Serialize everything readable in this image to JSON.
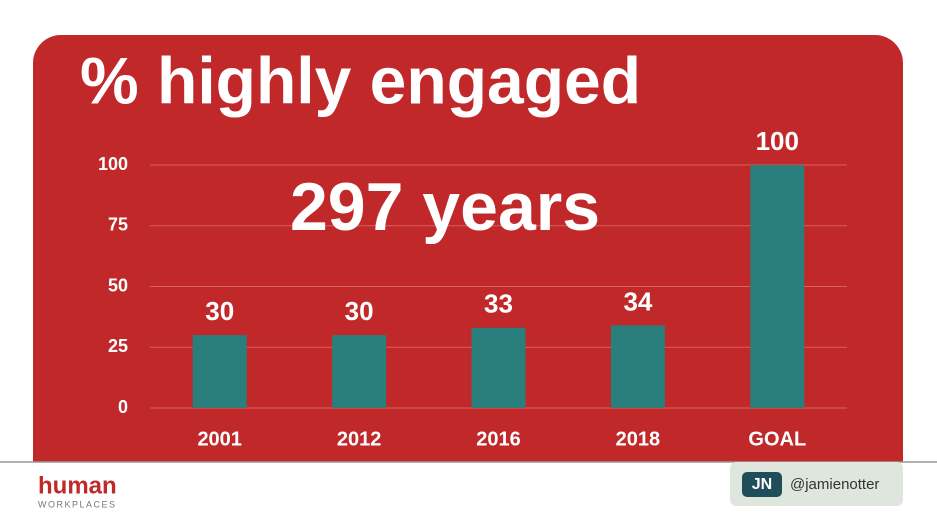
{
  "chart_data": {
    "type": "bar",
    "title": "% highly engaged",
    "annotation": "297 years",
    "categories": [
      "2001",
      "2012",
      "2016",
      "2018",
      "GOAL"
    ],
    "values": [
      30,
      30,
      33,
      34,
      100
    ],
    "color": "#2a7f7c",
    "ylim": [
      0,
      100
    ],
    "yticks": [
      0,
      25,
      50,
      75,
      100
    ],
    "grid": true
  },
  "footer": {
    "logo": "human",
    "logo_sub": "WORKPLACES",
    "badge_icon": "JN",
    "handle": "@jamienotter"
  }
}
